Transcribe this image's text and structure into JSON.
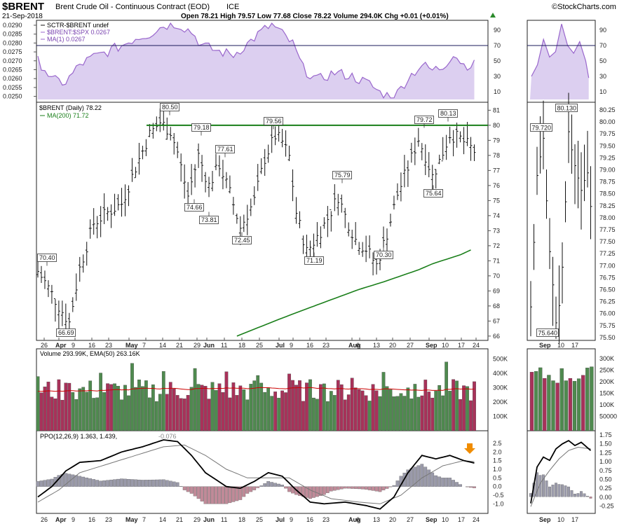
{
  "header": {
    "symbol": "$BRENT",
    "name": "Brent Crude Oil - Continuous Contract (EOD)",
    "exchange": "ICE",
    "date": "21-Sep-2018",
    "quote": "Open 78.21  High 79.57  Low 77.68  Close 78.22  Volume 294.0K  Chg +0.01 (+0.01%)",
    "brand": "©StockCharts.com",
    "chg_icon": "triangle-up-icon"
  },
  "panels": {
    "sctr": {
      "legend": [
        "SCTR-$BRENT undef",
        "$BRENT:$SPX 0.0267",
        "MA(1) 0.0267"
      ],
      "left_ticks": [
        "0.0290",
        "0.0285",
        "0.0280",
        "0.0275",
        "0.0270",
        "0.0265",
        "0.0260",
        "0.0255",
        "0.0250"
      ],
      "right_ticks": [
        "90",
        "70",
        "50",
        "30",
        "10"
      ]
    },
    "price": {
      "legend": [
        "$BRENT (Daily) 78.22",
        "MA(200) 71.72"
      ],
      "right_ticks": [
        "81",
        "80",
        "79",
        "78",
        "77",
        "76",
        "75",
        "74",
        "73",
        "72",
        "71",
        "70",
        "69",
        "68",
        "67",
        "66"
      ],
      "inset_ticks": [
        "80.25",
        "80.00",
        "79.75",
        "79.50",
        "79.25",
        "79.00",
        "78.75",
        "78.50",
        "78.25",
        "78.00",
        "77.75",
        "77.50",
        "77.25",
        "77.00",
        "76.75",
        "76.50",
        "76.25",
        "76.00",
        "75.75",
        "75.50"
      ],
      "annotations": [
        "80.50",
        "79.18",
        "77.61",
        "79.56",
        "79.72",
        "80.13",
        "70.40",
        "66.69",
        "74.66",
        "73.81",
        "72.45",
        "71.19",
        "75.79",
        "70.30",
        "75.64"
      ],
      "inset_annotations": [
        "79.720",
        "80.130",
        "75.640"
      ]
    },
    "volume": {
      "legend": "Volume 293.99K, EMA(50) 263.16K",
      "right_ticks": [
        "500K",
        "400K",
        "300K",
        "200K",
        "100K"
      ],
      "inset_ticks": [
        "300K",
        "250K",
        "200K",
        "150K",
        "100K",
        "50000"
      ]
    },
    "ppo": {
      "legend_main": "PPO(12,26,9) 1.363, 1.439,",
      "legend_hist": "-0.076",
      "right_ticks": [
        "2.5",
        "2.0",
        "1.5",
        "1.0",
        "0.5",
        "0.0",
        "-0.5",
        "-1.0"
      ],
      "inset_ticks": [
        "1.75",
        "1.50",
        "1.25",
        "1.00",
        "0.75",
        "0.50",
        "0.25",
        "0.00",
        "-0.25"
      ],
      "arrow_icon": "down-arrow-icon"
    },
    "x_axis": {
      "labels": [
        "26",
        "Apr",
        "9",
        "16",
        "23",
        "May",
        "7",
        "14",
        "21",
        "29",
        "Jun",
        "11",
        "18",
        "25",
        "Jul",
        "9",
        "16",
        "23",
        "Aug",
        "6",
        "13",
        "20",
        "27",
        "Sep",
        "10",
        "17",
        "24"
      ],
      "inset_labels": [
        "Sep",
        "10",
        "17"
      ]
    }
  },
  "colors": {
    "sctr_line": "#9966cc",
    "sctr_fill": "#dccff0",
    "resistance": "#1a7f1a",
    "ma200": "#1a7f1a",
    "vol_up": "#4f8a4f",
    "vol_down": "#a8325a",
    "ema": "#cc0000",
    "ppo_hist": "#9a9aaa",
    "ppo_hist_neg": "#c08a98",
    "arrow": "#f08c00"
  },
  "chart_data": {
    "type": "line",
    "title": "$BRENT Brent Crude Oil - Continuous Contract (EOD)",
    "x": [
      "26",
      "Apr",
      "9",
      "16",
      "23",
      "May",
      "7",
      "14",
      "21",
      "29",
      "Jun",
      "11",
      "18",
      "25",
      "Jul",
      "9",
      "16",
      "23",
      "Aug",
      "6",
      "13",
      "20",
      "27",
      "Sep",
      "10",
      "17",
      "24"
    ],
    "series": [
      {
        "name": "$BRENT (Daily)",
        "values": [
          70.2,
          68.5,
          70.8,
          73.0,
          74.2,
          75.0,
          76.5,
          79.0,
          79.6,
          78.5,
          74.8,
          76.8,
          75.2,
          73.8,
          79.0,
          78.9,
          72.5,
          72.8,
          74.5,
          75.3,
          72.0,
          71.2,
          73.0,
          76.5,
          77.8,
          79.3,
          78.4
        ]
      },
      {
        "name": "MA(200)",
        "values": [
          null,
          null,
          null,
          null,
          null,
          null,
          null,
          null,
          null,
          null,
          null,
          null,
          null,
          66.0,
          67.2,
          67.9,
          68.5,
          69.1,
          69.6,
          70.0,
          70.4,
          70.7,
          71.0,
          71.3,
          71.5,
          71.7,
          71.72
        ]
      }
    ],
    "ylim": [
      66,
      81
    ],
    "grid": false,
    "resistance": 80.0
  }
}
